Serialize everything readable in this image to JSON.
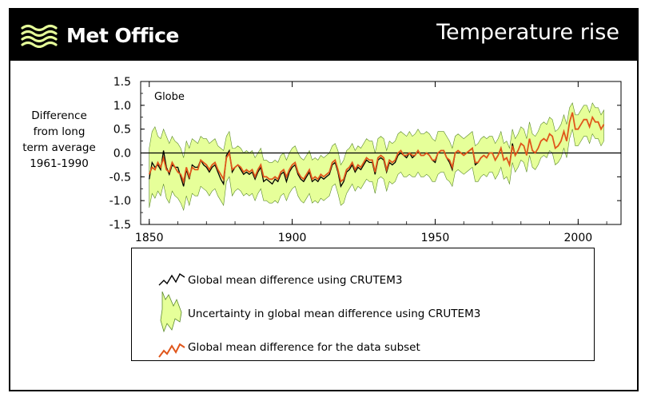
{
  "header": {
    "brand": "Met Office",
    "title": "Temperature rise"
  },
  "colors": {
    "band": "#e6ff99",
    "band_edge": "#5a8a2a",
    "black_series": "#000000",
    "orange_series": "#e0561b",
    "zero_line": "#000000"
  },
  "icons": {
    "logo": "wave-stripes-icon"
  },
  "chart_data": {
    "type": "line",
    "title": "",
    "panel_label": "Globe",
    "ylabel_lines": [
      "Difference",
      "from long",
      "term average",
      "1961-1990"
    ],
    "xlabel": "",
    "xlim": [
      1847,
      2015
    ],
    "ylim": [
      -1.5,
      1.5
    ],
    "x_ticks": [
      1850,
      1900,
      1950,
      2000
    ],
    "y_ticks": [
      "1.5",
      "1.0",
      "0.5",
      "0.0",
      "-0.5",
      "-1.0",
      "-1.5"
    ],
    "y_tick_values": [
      1.5,
      1.0,
      0.5,
      0.0,
      -0.5,
      -1.0,
      -1.5
    ],
    "zero_line": true,
    "x": [
      1850,
      1851,
      1852,
      1853,
      1854,
      1855,
      1856,
      1857,
      1858,
      1859,
      1860,
      1861,
      1862,
      1863,
      1864,
      1865,
      1866,
      1867,
      1868,
      1869,
      1870,
      1871,
      1872,
      1873,
      1874,
      1875,
      1876,
      1877,
      1878,
      1879,
      1880,
      1881,
      1882,
      1883,
      1884,
      1885,
      1886,
      1887,
      1888,
      1889,
      1890,
      1891,
      1892,
      1893,
      1894,
      1895,
      1896,
      1897,
      1898,
      1899,
      1900,
      1901,
      1902,
      1903,
      1904,
      1905,
      1906,
      1907,
      1908,
      1909,
      1910,
      1911,
      1912,
      1913,
      1914,
      1915,
      1916,
      1917,
      1918,
      1919,
      1920,
      1921,
      1922,
      1923,
      1924,
      1925,
      1926,
      1927,
      1928,
      1929,
      1930,
      1931,
      1932,
      1933,
      1934,
      1935,
      1936,
      1937,
      1938,
      1939,
      1940,
      1941,
      1942,
      1943,
      1944,
      1945,
      1946,
      1947,
      1948,
      1949,
      1950,
      1951,
      1952,
      1953,
      1954,
      1955,
      1956,
      1957,
      1958,
      1959,
      1960,
      1961,
      1962,
      1963,
      1964,
      1965,
      1966,
      1967,
      1968,
      1969,
      1970,
      1971,
      1972,
      1973,
      1974,
      1975,
      1976,
      1977,
      1978,
      1979,
      1980,
      1981,
      1982,
      1983,
      1984,
      1985,
      1986,
      1987,
      1988,
      1989,
      1990,
      1991,
      1992,
      1993,
      1994,
      1995,
      1996,
      1997,
      1998,
      1999,
      2000,
      2001,
      2002,
      2003,
      2004,
      2005,
      2006,
      2007,
      2008,
      2009
    ],
    "series": [
      {
        "name": "Global mean difference using CRUTEM3",
        "color": "#000000",
        "values": [
          -0.55,
          -0.2,
          -0.3,
          -0.25,
          -0.35,
          0.05,
          -0.3,
          -0.45,
          -0.25,
          -0.3,
          -0.3,
          -0.5,
          -0.7,
          -0.35,
          -0.55,
          -0.25,
          -0.3,
          -0.3,
          -0.15,
          -0.25,
          -0.3,
          -0.4,
          -0.3,
          -0.25,
          -0.4,
          -0.55,
          -0.65,
          -0.05,
          0.05,
          -0.4,
          -0.3,
          -0.25,
          -0.35,
          -0.45,
          -0.4,
          -0.45,
          -0.4,
          -0.55,
          -0.4,
          -0.3,
          -0.6,
          -0.55,
          -0.6,
          -0.65,
          -0.55,
          -0.6,
          -0.45,
          -0.4,
          -0.6,
          -0.4,
          -0.3,
          -0.25,
          -0.45,
          -0.55,
          -0.6,
          -0.5,
          -0.4,
          -0.6,
          -0.55,
          -0.6,
          -0.5,
          -0.55,
          -0.5,
          -0.45,
          -0.25,
          -0.2,
          -0.4,
          -0.7,
          -0.6,
          -0.4,
          -0.35,
          -0.25,
          -0.4,
          -0.3,
          -0.35,
          -0.25,
          -0.15,
          -0.2,
          -0.2,
          -0.45,
          -0.15,
          -0.1,
          -0.15,
          -0.4,
          -0.2,
          -0.25,
          -0.2,
          -0.05,
          0.0,
          -0.05,
          -0.1,
          0.0,
          -0.1,
          -0.05,
          0.05,
          -0.05,
          -0.05,
          0.0,
          -0.05,
          -0.15,
          -0.2,
          0.0,
          0.05,
          0.05,
          -0.1,
          -0.2,
          -0.35,
          0.0,
          0.05,
          0.0,
          -0.05,
          0.0,
          0.05,
          0.1,
          -0.25,
          -0.2,
          -0.1,
          -0.05,
          -0.1,
          0.0,
          0.0,
          -0.15,
          -0.05,
          0.1,
          -0.15,
          -0.1,
          -0.25,
          0.2,
          -0.05,
          0.05,
          0.2,
          0.15,
          -0.05,
          0.3,
          0.05,
          0.0,
          0.1,
          0.25,
          0.3,
          0.25,
          0.4,
          0.35,
          0.1,
          0.15,
          0.25,
          0.45,
          0.25,
          0.65,
          0.85,
          0.5,
          0.5,
          0.6,
          0.7,
          0.7,
          0.55,
          0.75,
          0.65,
          0.65,
          0.5,
          0.6
        ],
        "visible_until": 1979
      },
      {
        "name": "Global mean difference for the data subset",
        "color": "#e0561b",
        "values": [
          -0.45,
          -0.3,
          -0.35,
          -0.2,
          -0.3,
          -0.1,
          -0.35,
          -0.4,
          -0.2,
          -0.3,
          -0.4,
          -0.45,
          -0.6,
          -0.3,
          -0.5,
          -0.3,
          -0.35,
          -0.35,
          -0.15,
          -0.2,
          -0.25,
          -0.35,
          -0.25,
          -0.2,
          -0.35,
          -0.45,
          -0.55,
          -0.1,
          0.0,
          -0.35,
          -0.3,
          -0.25,
          -0.3,
          -0.4,
          -0.35,
          -0.4,
          -0.35,
          -0.5,
          -0.35,
          -0.25,
          -0.5,
          -0.5,
          -0.55,
          -0.55,
          -0.5,
          -0.55,
          -0.4,
          -0.35,
          -0.5,
          -0.35,
          -0.25,
          -0.2,
          -0.4,
          -0.5,
          -0.55,
          -0.45,
          -0.35,
          -0.55,
          -0.5,
          -0.55,
          -0.45,
          -0.5,
          -0.45,
          -0.4,
          -0.2,
          -0.15,
          -0.35,
          -0.6,
          -0.55,
          -0.35,
          -0.3,
          -0.2,
          -0.35,
          -0.25,
          -0.3,
          -0.2,
          -0.1,
          -0.15,
          -0.15,
          -0.4,
          -0.1,
          -0.05,
          -0.1,
          -0.35,
          -0.15,
          -0.2,
          -0.15,
          0.0,
          0.05,
          -0.05,
          -0.05,
          0.0,
          -0.05,
          -0.05,
          0.05,
          -0.05,
          -0.05,
          0.0,
          -0.05,
          -0.15,
          -0.15,
          0.0,
          0.05,
          0.05,
          -0.1,
          -0.15,
          -0.3,
          0.0,
          0.05,
          0.0,
          -0.05,
          0.0,
          0.05,
          0.1,
          -0.2,
          -0.2,
          -0.1,
          -0.05,
          -0.1,
          0.0,
          0.0,
          -0.15,
          -0.05,
          0.1,
          -0.15,
          -0.1,
          -0.25,
          0.15,
          -0.05,
          0.05,
          0.2,
          0.15,
          -0.05,
          0.3,
          0.05,
          0.0,
          0.1,
          0.25,
          0.3,
          0.25,
          0.4,
          0.35,
          0.1,
          0.15,
          0.25,
          0.45,
          0.25,
          0.65,
          0.85,
          0.5,
          0.5,
          0.6,
          0.7,
          0.7,
          0.55,
          0.75,
          0.65,
          0.65,
          0.5,
          0.6
        ]
      }
    ],
    "uncertainty": {
      "name": "Uncertainty in global mean difference using CRUTEM3",
      "color": "#e6ff99",
      "upper": [
        0.1,
        0.45,
        0.55,
        0.35,
        0.3,
        0.5,
        0.35,
        0.2,
        0.35,
        0.25,
        0.2,
        0.1,
        -0.1,
        0.25,
        0.1,
        0.3,
        0.25,
        0.2,
        0.35,
        0.3,
        0.3,
        0.2,
        0.25,
        0.3,
        0.15,
        0.1,
        0.05,
        0.35,
        0.45,
        0.1,
        0.1,
        0.15,
        0.1,
        0.0,
        0.05,
        0.0,
        0.05,
        -0.1,
        0.0,
        0.1,
        -0.15,
        -0.15,
        -0.2,
        -0.2,
        -0.15,
        -0.2,
        -0.05,
        0.0,
        -0.15,
        0.0,
        0.1,
        0.15,
        0.0,
        -0.1,
        -0.15,
        -0.05,
        0.05,
        -0.15,
        -0.1,
        -0.15,
        -0.05,
        -0.1,
        -0.05,
        0.0,
        0.15,
        0.2,
        0.05,
        -0.25,
        -0.15,
        0.05,
        0.1,
        0.2,
        0.05,
        0.15,
        0.1,
        0.2,
        0.3,
        0.25,
        0.25,
        0.0,
        0.3,
        0.35,
        0.3,
        0.05,
        0.25,
        0.2,
        0.25,
        0.4,
        0.45,
        0.4,
        0.35,
        0.45,
        0.35,
        0.4,
        0.5,
        0.4,
        0.4,
        0.45,
        0.4,
        0.3,
        0.25,
        0.45,
        0.45,
        0.45,
        0.35,
        0.25,
        0.1,
        0.35,
        0.4,
        0.35,
        0.3,
        0.35,
        0.4,
        0.45,
        0.15,
        0.2,
        0.3,
        0.35,
        0.3,
        0.35,
        0.35,
        0.2,
        0.3,
        0.45,
        0.2,
        0.25,
        0.1,
        0.5,
        0.3,
        0.4,
        0.55,
        0.5,
        0.3,
        0.65,
        0.4,
        0.35,
        0.45,
        0.6,
        0.65,
        0.6,
        0.75,
        0.7,
        0.45,
        0.5,
        0.6,
        0.8,
        0.6,
        0.95,
        1.05,
        0.8,
        0.8,
        0.9,
        1.0,
        1.0,
        0.85,
        1.05,
        0.95,
        0.95,
        0.8,
        0.9
      ],
      "lower": [
        -1.15,
        -0.85,
        -0.95,
        -0.8,
        -0.9,
        -0.65,
        -0.95,
        -1.05,
        -0.8,
        -0.9,
        -0.95,
        -1.05,
        -1.2,
        -0.9,
        -1.1,
        -0.85,
        -0.9,
        -0.9,
        -0.7,
        -0.75,
        -0.8,
        -0.9,
        -0.8,
        -0.75,
        -0.9,
        -1.0,
        -1.1,
        -0.6,
        -0.5,
        -0.9,
        -0.8,
        -0.75,
        -0.8,
        -0.9,
        -0.85,
        -0.9,
        -0.85,
        -1.0,
        -0.85,
        -0.75,
        -1.0,
        -1.0,
        -1.05,
        -1.05,
        -1.0,
        -1.05,
        -0.9,
        -0.85,
        -1.0,
        -0.85,
        -0.75,
        -0.7,
        -0.9,
        -1.0,
        -1.05,
        -0.95,
        -0.85,
        -1.05,
        -1.0,
        -1.05,
        -0.95,
        -1.0,
        -0.95,
        -0.9,
        -0.7,
        -0.65,
        -0.85,
        -1.1,
        -1.05,
        -0.85,
        -0.75,
        -0.65,
        -0.8,
        -0.7,
        -0.75,
        -0.65,
        -0.55,
        -0.6,
        -0.6,
        -0.85,
        -0.55,
        -0.5,
        -0.55,
        -0.8,
        -0.6,
        -0.65,
        -0.6,
        -0.45,
        -0.4,
        -0.5,
        -0.5,
        -0.45,
        -0.5,
        -0.5,
        -0.4,
        -0.5,
        -0.5,
        -0.45,
        -0.5,
        -0.6,
        -0.6,
        -0.45,
        -0.4,
        -0.4,
        -0.55,
        -0.6,
        -0.7,
        -0.4,
        -0.35,
        -0.4,
        -0.45,
        -0.4,
        -0.35,
        -0.3,
        -0.6,
        -0.6,
        -0.5,
        -0.45,
        -0.5,
        -0.4,
        -0.4,
        -0.55,
        -0.45,
        -0.3,
        -0.55,
        -0.5,
        -0.65,
        -0.2,
        -0.4,
        -0.3,
        -0.15,
        -0.2,
        -0.4,
        -0.05,
        -0.3,
        -0.35,
        -0.25,
        -0.1,
        -0.05,
        -0.1,
        0.05,
        0.0,
        -0.25,
        -0.2,
        -0.1,
        0.1,
        -0.1,
        0.3,
        0.5,
        0.15,
        0.15,
        0.25,
        0.35,
        0.35,
        0.2,
        0.4,
        0.3,
        0.3,
        0.15,
        0.25
      ]
    }
  },
  "legend": {
    "items": [
      {
        "label": "Global mean difference using CRUTEM3"
      },
      {
        "label": "Uncertainty in global mean difference using CRUTEM3"
      },
      {
        "label": "Global mean difference for the data subset"
      }
    ]
  }
}
